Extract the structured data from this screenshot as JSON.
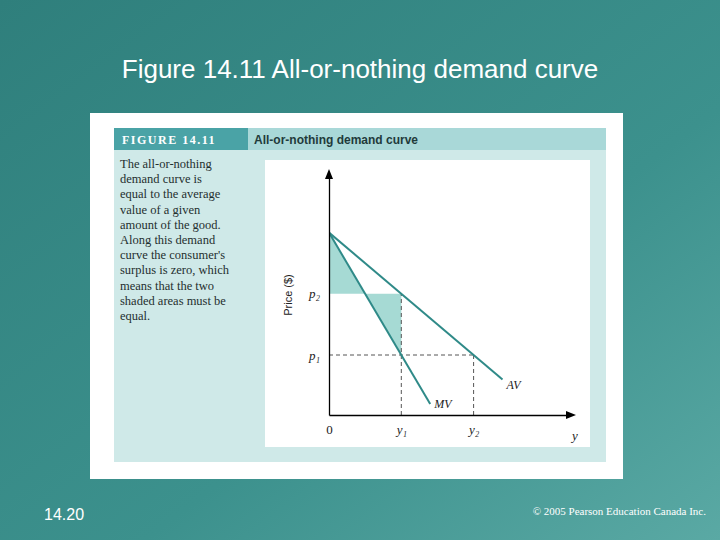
{
  "slide": {
    "title": "Figure 14.11 All-or-nothing demand curve",
    "page": "14.20",
    "copyright": "© 2005 Pearson Education Canada Inc."
  },
  "figure": {
    "label": "FIGURE 14.11",
    "title": "All-or-nothing demand curve",
    "caption": [
      "The all-or-nothing",
      "demand curve is",
      "equal to the average",
      "value of a given",
      "amount of the good.",
      "Along this demand",
      "curve the consumer's",
      "surplus is zero, which",
      "means that the two",
      "shaded areas must be",
      "equal."
    ]
  },
  "chart_data": {
    "type": "line",
    "x_label": "y",
    "y_label": "Price ($)",
    "xlim": [
      0,
      10
    ],
    "ylim": [
      0,
      10
    ],
    "xticks": [
      0,
      {
        "value": 3,
        "label": "y₁"
      },
      {
        "value": 6,
        "label": "y₂"
      }
    ],
    "yticks": [
      {
        "value": 2.5,
        "label": "p₁"
      },
      {
        "value": 5.05,
        "label": "p₂"
      }
    ],
    "grid": false,
    "series": [
      {
        "name": "AV",
        "color": "#2f8a88",
        "x": [
          0,
          7.2
        ],
        "values": [
          7.6,
          1.48
        ]
      },
      {
        "name": "MV",
        "color": "#2f8a88",
        "x": [
          0,
          4.2
        ],
        "values": [
          7.6,
          0.46
        ]
      }
    ],
    "shaded_areas": [
      {
        "color": "#a6dad4",
        "x": [
          0,
          1.5,
          0
        ],
        "y": [
          7.6,
          5.05,
          5.05
        ]
      },
      {
        "color": "#a6dad4",
        "x": [
          1.5,
          3,
          3
        ],
        "y": [
          5.05,
          5.05,
          2.5
        ]
      }
    ]
  }
}
